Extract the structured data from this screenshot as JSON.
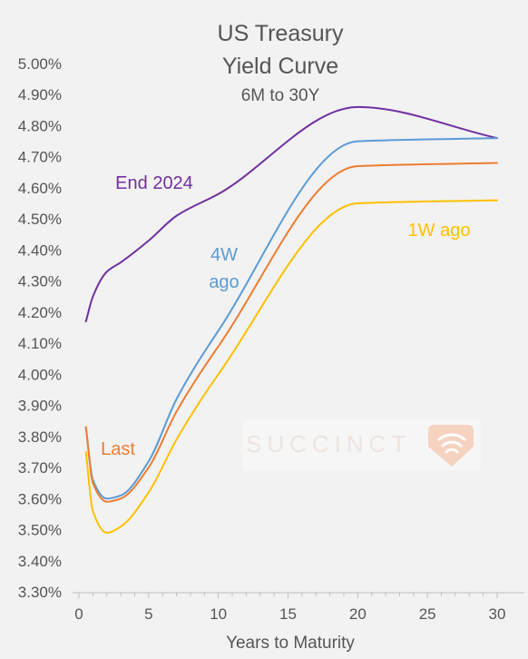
{
  "chart_data": {
    "type": "line",
    "title": "US Treasury",
    "title_line2": "Yield Curve",
    "subtitle": "6M to 30Y",
    "xlabel": "Years to Maturity",
    "ylabel": "",
    "xlim": [
      0,
      30
    ],
    "ylim": [
      3.3,
      5.0
    ],
    "x_ticks": [
      0,
      5,
      10,
      15,
      20,
      25,
      30
    ],
    "y_ticks": [
      3.3,
      3.4,
      3.5,
      3.6,
      3.7,
      3.8,
      3.9,
      4.0,
      4.1,
      4.2,
      4.3,
      4.4,
      4.5,
      4.6,
      4.7,
      4.8,
      4.9,
      5.0
    ],
    "grid": false,
    "series": [
      {
        "name": "End 2024",
        "color": "#7030a0",
        "x": [
          0.5,
          1,
          2,
          3,
          5,
          7,
          10,
          20,
          30
        ],
        "y": [
          4.17,
          4.25,
          4.33,
          4.36,
          4.43,
          4.51,
          4.58,
          4.86,
          4.76
        ]
      },
      {
        "name": "4W ago",
        "color": "#5b9bd5",
        "x": [
          0.5,
          1,
          2,
          3,
          5,
          7,
          10,
          20,
          30
        ],
        "y": [
          3.83,
          3.66,
          3.6,
          3.61,
          3.72,
          3.92,
          4.14,
          4.75,
          4.76
        ]
      },
      {
        "name": "Last",
        "color": "#ed7d31",
        "x": [
          0.5,
          1,
          2,
          3,
          5,
          7,
          10,
          20,
          30
        ],
        "y": [
          3.83,
          3.65,
          3.59,
          3.6,
          3.7,
          3.88,
          4.09,
          4.67,
          4.68
        ]
      },
      {
        "name": "1W ago",
        "color": "#ffc000",
        "x": [
          0.5,
          1,
          2,
          3,
          5,
          7,
          10,
          20,
          30
        ],
        "y": [
          3.75,
          3.56,
          3.49,
          3.51,
          3.62,
          3.79,
          4.0,
          4.55,
          4.56
        ]
      }
    ],
    "annotations": [
      {
        "text": "End 2024",
        "series": "End 2024"
      },
      {
        "text": "4W",
        "text2": "ago",
        "series": "4W ago"
      },
      {
        "text": "Last",
        "series": "Last"
      },
      {
        "text": "1W ago",
        "series": "1W ago"
      }
    ]
  },
  "watermark": {
    "text": "SUCCINCT",
    "icon": "wifi-badge-icon",
    "color": "#f3c9b5"
  }
}
